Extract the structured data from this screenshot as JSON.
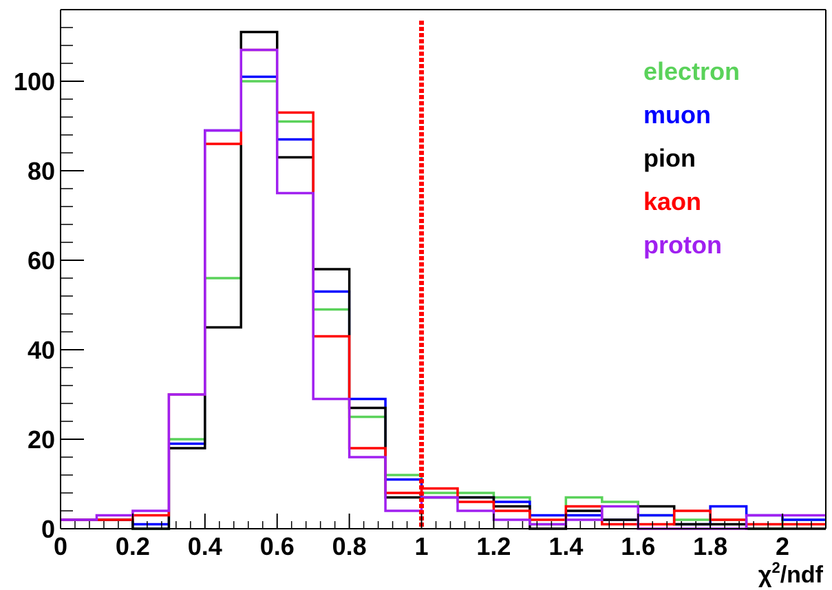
{
  "chart_data": {
    "type": "histogram",
    "title": "",
    "xlabel": "χ²/ndf",
    "xlabel_parts": {
      "symbol": "χ",
      "superscript": "2",
      "suffix": "/ndf"
    },
    "ylabel": "",
    "xlim": [
      0,
      2.12
    ],
    "ylim": [
      0,
      116
    ],
    "grid": false,
    "legend_placement": "top-right",
    "x_ticks": [
      0,
      0.2,
      0.4,
      0.6,
      0.8,
      1,
      1.2,
      1.4,
      1.6,
      1.8,
      2
    ],
    "x_tick_labels": [
      "0",
      "0.2",
      "0.4",
      "0.6",
      "0.8",
      "1",
      "1.2",
      "1.4",
      "1.6",
      "1.8",
      "2"
    ],
    "y_ticks": [
      0,
      20,
      40,
      60,
      80,
      100
    ],
    "y_tick_labels": [
      "0",
      "20",
      "40",
      "60",
      "80",
      "100"
    ],
    "bin_edges": [
      0,
      0.1,
      0.2,
      0.3,
      0.4,
      0.5,
      0.6,
      0.7,
      0.8,
      0.9,
      1.0,
      1.1,
      1.2,
      1.3,
      1.4,
      1.5,
      1.6,
      1.7,
      1.8,
      1.9,
      2.0,
      2.12
    ],
    "cut_line": {
      "x": 1.0,
      "color": "#ff0000",
      "style": "dashed"
    },
    "series": [
      {
        "name": "electron",
        "color": "#5ad25a",
        "values": [
          2,
          2,
          0,
          20,
          56,
          100,
          91,
          49,
          25,
          12,
          8,
          8,
          7,
          1,
          7,
          6,
          3,
          2,
          2,
          0,
          2
        ]
      },
      {
        "name": "muon",
        "color": "#0000ff",
        "values": [
          2,
          2,
          1,
          19,
          89,
          101,
          87,
          53,
          29,
          11,
          7,
          7,
          6,
          3,
          3,
          2,
          3,
          1,
          5,
          3,
          2
        ]
      },
      {
        "name": "pion",
        "color": "#000000",
        "values": [
          2,
          2,
          0,
          18,
          45,
          111,
          83,
          58,
          27,
          7,
          7,
          7,
          5,
          0,
          4,
          2,
          5,
          1,
          1,
          0,
          0
        ]
      },
      {
        "name": "kaon",
        "color": "#ff0000",
        "values": [
          2,
          2,
          3,
          30,
          86,
          107,
          93,
          43,
          18,
          8,
          9,
          6,
          4,
          2,
          5,
          1,
          1,
          4,
          2,
          1,
          1
        ]
      },
      {
        "name": "proton",
        "color": "#a020f0",
        "values": [
          2,
          3,
          4,
          30,
          89,
          107,
          75,
          29,
          16,
          4,
          7,
          4,
          2,
          1,
          2,
          5,
          0,
          0,
          0,
          3,
          3
        ]
      }
    ]
  }
}
